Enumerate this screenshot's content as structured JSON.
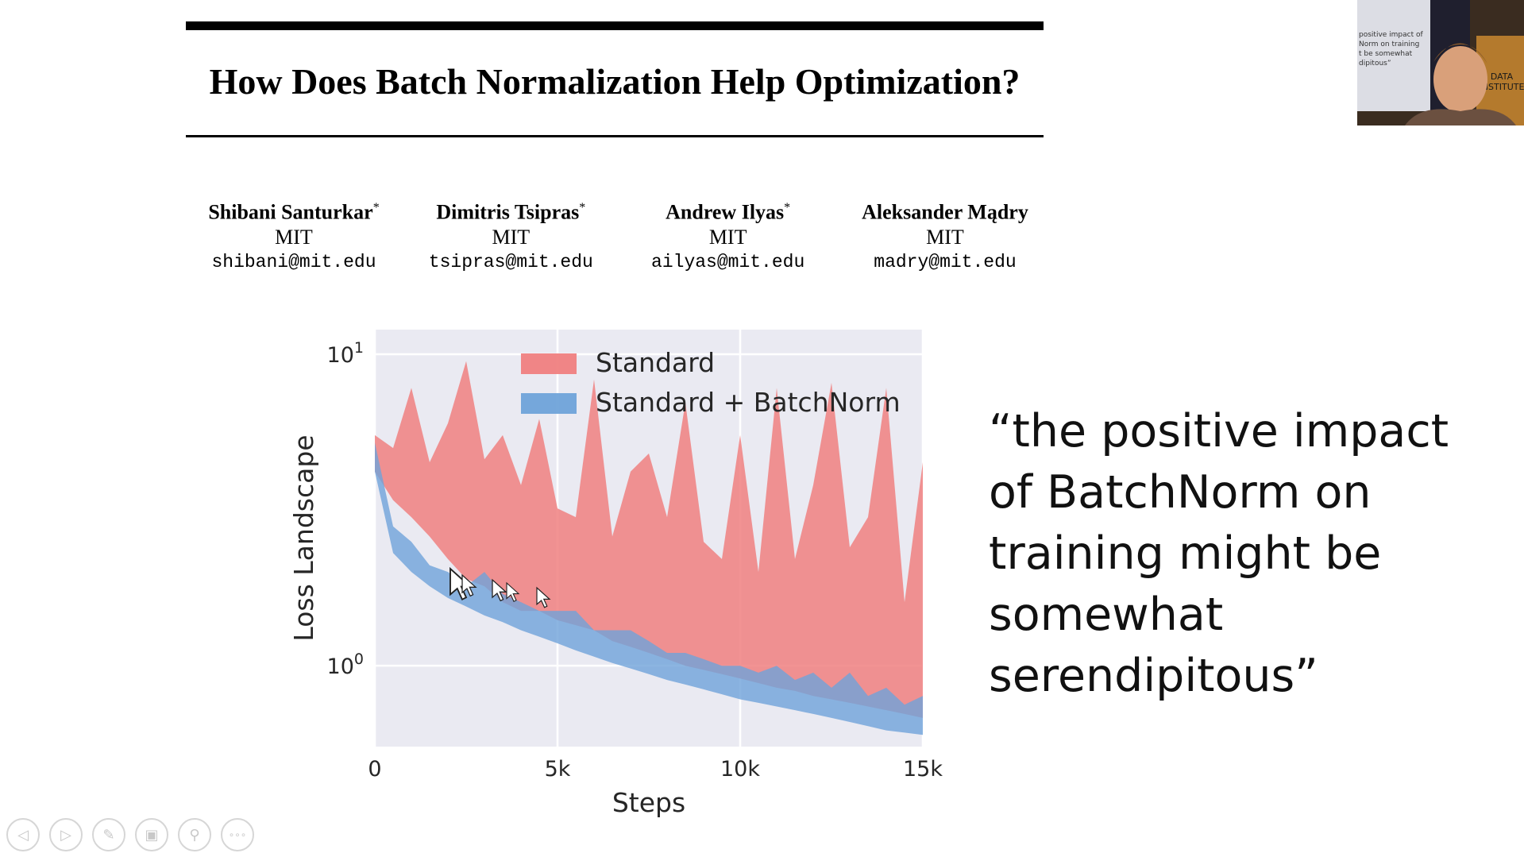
{
  "paper": {
    "title": "How Does Batch Normalization Help Optimization?",
    "authors": [
      {
        "name": "Shibani Santurkar",
        "mark": "*",
        "affiliation": "MIT",
        "email": "shibani@mit.edu"
      },
      {
        "name": "Dimitris Tsipras",
        "mark": "*",
        "affiliation": "MIT",
        "email": "tsipras@mit.edu"
      },
      {
        "name": "Andrew Ilyas",
        "mark": "*",
        "affiliation": "MIT",
        "email": "ailyas@mit.edu"
      },
      {
        "name": "Aleksander Mądry",
        "mark": "",
        "affiliation": "MIT",
        "email": "madry@mit.edu"
      }
    ]
  },
  "chart_data": {
    "type": "area",
    "xlabel": "Steps",
    "ylabel": "Loss Landscape",
    "xlim": [
      0,
      15000
    ],
    "ylim": [
      0.55,
      12
    ],
    "yscale": "log",
    "x_ticks": [
      "0",
      "5k",
      "10k",
      "15k"
    ],
    "y_ticks": [
      {
        "base": "10",
        "exp": "1"
      },
      {
        "base": "10",
        "exp": "0"
      }
    ],
    "grid": true,
    "legend": "top-right",
    "series": [
      {
        "name": "Standard",
        "color": "#f08080",
        "x": [
          0,
          500,
          1000,
          1500,
          2000,
          2500,
          3000,
          3500,
          4000,
          4500,
          5000,
          5500,
          6000,
          6500,
          7000,
          7500,
          8000,
          8500,
          9000,
          9500,
          10000,
          10500,
          11000,
          11500,
          12000,
          12500,
          13000,
          13500,
          14000,
          14500,
          15000
        ],
        "upper": [
          5.5,
          5.0,
          7.8,
          4.5,
          6.0,
          9.5,
          4.6,
          5.5,
          3.8,
          6.2,
          3.2,
          3.0,
          8.3,
          2.6,
          4.2,
          4.8,
          3.0,
          7.0,
          2.5,
          2.2,
          5.5,
          2.0,
          7.8,
          2.2,
          3.8,
          8.1,
          2.4,
          3.0,
          7.8,
          1.6,
          4.5
        ],
        "lower": [
          4.2,
          3.4,
          3.0,
          2.6,
          2.2,
          1.9,
          1.8,
          1.6,
          1.5,
          1.5,
          1.4,
          1.35,
          1.3,
          1.2,
          1.15,
          1.1,
          1.05,
          1.0,
          0.97,
          0.94,
          0.91,
          0.88,
          0.85,
          0.83,
          0.8,
          0.78,
          0.76,
          0.74,
          0.72,
          0.7,
          0.68
        ]
      },
      {
        "name": "Standard + BatchNorm",
        "color": "#6fa3d9",
        "x": [
          0,
          500,
          1000,
          1500,
          2000,
          2500,
          3000,
          3500,
          4000,
          4500,
          5000,
          5500,
          6000,
          6500,
          7000,
          7500,
          8000,
          8500,
          9000,
          9500,
          10000,
          10500,
          11000,
          11500,
          12000,
          12500,
          13000,
          13500,
          14000,
          14500,
          15000
        ],
        "upper": [
          5.2,
          2.8,
          2.5,
          2.1,
          2.0,
          1.8,
          2.0,
          1.7,
          1.6,
          1.5,
          1.5,
          1.5,
          1.3,
          1.3,
          1.3,
          1.2,
          1.1,
          1.1,
          1.05,
          1.0,
          1.0,
          0.95,
          1.0,
          0.9,
          0.95,
          0.85,
          0.95,
          0.8,
          0.85,
          0.75,
          0.8
        ],
        "lower": [
          4.2,
          2.3,
          2.0,
          1.8,
          1.65,
          1.55,
          1.45,
          1.38,
          1.3,
          1.24,
          1.18,
          1.12,
          1.07,
          1.02,
          0.98,
          0.94,
          0.9,
          0.87,
          0.84,
          0.81,
          0.78,
          0.76,
          0.74,
          0.72,
          0.7,
          0.68,
          0.66,
          0.64,
          0.62,
          0.61,
          0.6
        ]
      }
    ]
  },
  "quote": "“the positive impact of BatchNorm on training might be somewhat serendipitous”",
  "webcam": {
    "slide_text": "positive impact of\nNorm on training\nt be somewhat\ndipitous”",
    "sign_text": "DATA\nINSTITUTE"
  },
  "toolbar": {
    "buttons": [
      {
        "icon": "previous-icon",
        "glyph": "◁"
      },
      {
        "icon": "next-icon",
        "glyph": "▷"
      },
      {
        "icon": "pen-icon",
        "glyph": "✎"
      },
      {
        "icon": "slides-icon",
        "glyph": "▣"
      },
      {
        "icon": "zoom-icon",
        "glyph": "⚲"
      },
      {
        "icon": "more-icon",
        "glyph": "∘∘∘"
      }
    ]
  }
}
